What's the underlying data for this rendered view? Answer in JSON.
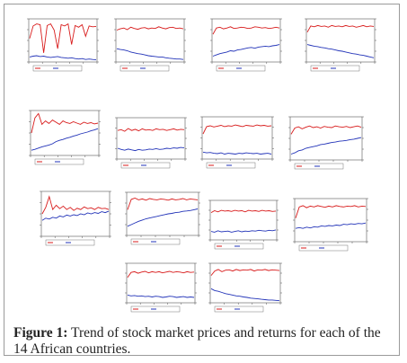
{
  "figure": {
    "caption_label": "Figure 1:",
    "caption_text": "Trend of stock market prices and returns for each of the 14 African countries."
  },
  "colors": {
    "price": "#d81b1b",
    "returns": "#2233b8",
    "axis": "#555555",
    "frame": "#9a9a9a"
  },
  "chart_data": [
    {
      "type": "line",
      "series": [
        {
          "color": "#d81b1b",
          "values": [
            0.55,
            0.85,
            0.9,
            0.88,
            0.2,
            0.86,
            0.9,
            0.75,
            0.3,
            0.88,
            0.85,
            0.9,
            0.4,
            0.86,
            0.82,
            0.88,
            0.6,
            0.85,
            0.83,
            0.84
          ]
        },
        {
          "color": "#2233b8",
          "values": [
            0.1,
            0.12,
            0.13,
            0.11,
            0.12,
            0.1,
            0.09,
            0.1,
            0.11,
            0.09,
            0.08,
            0.07,
            0.08,
            0.06,
            0.05,
            0.06,
            0.04,
            0.05,
            0.04,
            0.03
          ]
        }
      ]
    },
    {
      "type": "line",
      "series": [
        {
          "color": "#d81b1b",
          "values": [
            0.75,
            0.78,
            0.8,
            0.76,
            0.82,
            0.79,
            0.77,
            0.8,
            0.81,
            0.78,
            0.8,
            0.79,
            0.83,
            0.8,
            0.78,
            0.81,
            0.82,
            0.79,
            0.8,
            0.78
          ]
        },
        {
          "color": "#2233b8",
          "values": [
            0.3,
            0.28,
            0.27,
            0.25,
            0.22,
            0.2,
            0.18,
            0.17,
            0.15,
            0.13,
            0.12,
            0.11,
            0.1,
            0.1,
            0.08,
            0.07,
            0.06,
            0.05,
            0.05,
            0.04
          ]
        }
      ]
    },
    {
      "type": "line",
      "series": [
        {
          "color": "#d81b1b",
          "values": [
            0.65,
            0.8,
            0.82,
            0.78,
            0.8,
            0.83,
            0.79,
            0.8,
            0.82,
            0.81,
            0.79,
            0.8,
            0.83,
            0.82,
            0.8,
            0.81,
            0.79,
            0.8,
            0.82,
            0.8
          ]
        },
        {
          "color": "#2233b8",
          "values": [
            0.12,
            0.15,
            0.18,
            0.2,
            0.22,
            0.25,
            0.24,
            0.27,
            0.28,
            0.3,
            0.32,
            0.33,
            0.31,
            0.34,
            0.35,
            0.36,
            0.35,
            0.37,
            0.38,
            0.4
          ]
        }
      ]
    },
    {
      "type": "line",
      "series": [
        {
          "color": "#d81b1b",
          "values": [
            0.7,
            0.85,
            0.83,
            0.86,
            0.84,
            0.85,
            0.82,
            0.86,
            0.84,
            0.85,
            0.83,
            0.86,
            0.84,
            0.85,
            0.82,
            0.84,
            0.86,
            0.83,
            0.85,
            0.84
          ]
        },
        {
          "color": "#2233b8",
          "values": [
            0.4,
            0.38,
            0.36,
            0.35,
            0.33,
            0.32,
            0.3,
            0.29,
            0.27,
            0.25,
            0.24,
            0.22,
            0.2,
            0.18,
            0.17,
            0.15,
            0.14,
            0.12,
            0.1,
            0.08
          ]
        }
      ]
    },
    {
      "type": "line",
      "series": [
        {
          "color": "#d81b1b",
          "values": [
            0.5,
            0.85,
            0.95,
            0.7,
            0.78,
            0.72,
            0.8,
            0.75,
            0.7,
            0.78,
            0.74,
            0.72,
            0.76,
            0.73,
            0.7,
            0.75,
            0.72,
            0.74,
            0.71,
            0.73
          ]
        },
        {
          "color": "#2233b8",
          "values": [
            0.1,
            0.12,
            0.15,
            0.18,
            0.2,
            0.22,
            0.25,
            0.3,
            0.33,
            0.35,
            0.38,
            0.4,
            0.43,
            0.45,
            0.48,
            0.5,
            0.52,
            0.55,
            0.57,
            0.6
          ]
        }
      ]
    },
    {
      "type": "line",
      "series": [
        {
          "color": "#d81b1b",
          "values": [
            0.7,
            0.72,
            0.68,
            0.75,
            0.7,
            0.73,
            0.69,
            0.74,
            0.71,
            0.72,
            0.7,
            0.74,
            0.72,
            0.73,
            0.7,
            0.72,
            0.74,
            0.71,
            0.73,
            0.72
          ]
        },
        {
          "color": "#2233b8",
          "values": [
            0.25,
            0.22,
            0.2,
            0.23,
            0.21,
            0.19,
            0.22,
            0.2,
            0.21,
            0.23,
            0.22,
            0.24,
            0.22,
            0.23,
            0.25,
            0.24,
            0.26,
            0.25,
            0.27,
            0.26
          ]
        }
      ]
    },
    {
      "type": "line",
      "series": [
        {
          "color": "#d81b1b",
          "values": [
            0.6,
            0.78,
            0.8,
            0.77,
            0.79,
            0.81,
            0.78,
            0.8,
            0.79,
            0.82,
            0.8,
            0.78,
            0.81,
            0.8,
            0.79,
            0.82,
            0.8,
            0.81,
            0.79,
            0.8
          ]
        },
        {
          "color": "#2233b8",
          "values": [
            0.15,
            0.13,
            0.14,
            0.12,
            0.11,
            0.13,
            0.1,
            0.12,
            0.11,
            0.1,
            0.12,
            0.11,
            0.13,
            0.12,
            0.11,
            0.12,
            0.1,
            0.11,
            0.12,
            0.1
          ]
        }
      ]
    },
    {
      "type": "line",
      "series": [
        {
          "color": "#d81b1b",
          "values": [
            0.6,
            0.75,
            0.78,
            0.73,
            0.77,
            0.8,
            0.76,
            0.78,
            0.75,
            0.79,
            0.77,
            0.76,
            0.8,
            0.78,
            0.77,
            0.79,
            0.76,
            0.78,
            0.8,
            0.77
          ]
        },
        {
          "color": "#2233b8",
          "values": [
            0.12,
            0.15,
            0.2,
            0.22,
            0.26,
            0.28,
            0.3,
            0.32,
            0.35,
            0.36,
            0.38,
            0.4,
            0.41,
            0.43,
            0.44,
            0.45,
            0.47,
            0.48,
            0.5,
            0.52
          ]
        }
      ]
    },
    {
      "type": "line",
      "series": [
        {
          "color": "#d81b1b",
          "values": [
            0.5,
            0.65,
            0.9,
            0.6,
            0.7,
            0.62,
            0.68,
            0.6,
            0.65,
            0.58,
            0.63,
            0.6,
            0.66,
            0.62,
            0.64,
            0.6,
            0.65,
            0.62,
            0.63,
            0.6
          ]
        },
        {
          "color": "#2233b8",
          "values": [
            0.35,
            0.4,
            0.38,
            0.42,
            0.4,
            0.45,
            0.43,
            0.47,
            0.45,
            0.48,
            0.46,
            0.5,
            0.48,
            0.52,
            0.5,
            0.53,
            0.51,
            0.55,
            0.53,
            0.56
          ]
        }
      ]
    },
    {
      "type": "line",
      "series": [
        {
          "color": "#d81b1b",
          "values": [
            0.6,
            0.85,
            0.88,
            0.84,
            0.86,
            0.83,
            0.87,
            0.85,
            0.84,
            0.86,
            0.85,
            0.83,
            0.86,
            0.84,
            0.85,
            0.87,
            0.84,
            0.86,
            0.85,
            0.84
          ]
        },
        {
          "color": "#2233b8",
          "values": [
            0.2,
            0.24,
            0.28,
            0.32,
            0.35,
            0.38,
            0.4,
            0.42,
            0.44,
            0.46,
            0.48,
            0.5,
            0.51,
            0.53,
            0.54,
            0.56,
            0.57,
            0.58,
            0.6,
            0.62
          ]
        }
      ]
    },
    {
      "type": "line",
      "series": [
        {
          "color": "#d81b1b",
          "values": [
            0.7,
            0.75,
            0.72,
            0.76,
            0.74,
            0.75,
            0.73,
            0.76,
            0.74,
            0.75,
            0.72,
            0.76,
            0.74,
            0.75,
            0.73,
            0.76,
            0.74,
            0.75,
            0.73,
            0.74
          ]
        },
        {
          "color": "#2233b8",
          "values": [
            0.2,
            0.18,
            0.22,
            0.19,
            0.2,
            0.21,
            0.18,
            0.2,
            0.22,
            0.19,
            0.21,
            0.2,
            0.22,
            0.21,
            0.23,
            0.22,
            0.21,
            0.23,
            0.22,
            0.24
          ]
        }
      ]
    },
    {
      "type": "line",
      "series": [
        {
          "color": "#d81b1b",
          "values": [
            0.55,
            0.82,
            0.85,
            0.8,
            0.84,
            0.82,
            0.85,
            0.83,
            0.81,
            0.84,
            0.82,
            0.85,
            0.83,
            0.82,
            0.84,
            0.83,
            0.85,
            0.82,
            0.84,
            0.83
          ]
        },
        {
          "color": "#2233b8",
          "values": [
            0.3,
            0.32,
            0.3,
            0.33,
            0.31,
            0.34,
            0.33,
            0.36,
            0.35,
            0.37,
            0.36,
            0.38,
            0.37,
            0.4,
            0.39,
            0.41,
            0.4,
            0.42,
            0.41,
            0.43
          ]
        }
      ]
    },
    {
      "type": "line",
      "series": [
        {
          "color": "#d81b1b",
          "values": [
            0.65,
            0.78,
            0.8,
            0.76,
            0.79,
            0.81,
            0.77,
            0.8,
            0.78,
            0.8,
            0.77,
            0.79,
            0.81,
            0.78,
            0.8,
            0.79,
            0.77,
            0.8,
            0.78,
            0.79
          ]
        },
        {
          "color": "#2233b8",
          "values": [
            0.18,
            0.16,
            0.17,
            0.15,
            0.16,
            0.14,
            0.15,
            0.13,
            0.15,
            0.14,
            0.12,
            0.13,
            0.15,
            0.14,
            0.12,
            0.13,
            0.14,
            0.12,
            0.13,
            0.12
          ]
        }
      ]
    },
    {
      "type": "line",
      "series": [
        {
          "color": "#d81b1b",
          "values": [
            0.7,
            0.82,
            0.86,
            0.8,
            0.84,
            0.85,
            0.82,
            0.86,
            0.83,
            0.85,
            0.84,
            0.86,
            0.82,
            0.85,
            0.84,
            0.86,
            0.83,
            0.85,
            0.84,
            0.83
          ]
        },
        {
          "color": "#2233b8",
          "values": [
            0.35,
            0.3,
            0.28,
            0.25,
            0.22,
            0.2,
            0.18,
            0.16,
            0.15,
            0.13,
            0.12,
            0.1,
            0.09,
            0.08,
            0.07,
            0.06,
            0.05,
            0.05,
            0.04,
            0.03
          ]
        }
      ]
    }
  ]
}
